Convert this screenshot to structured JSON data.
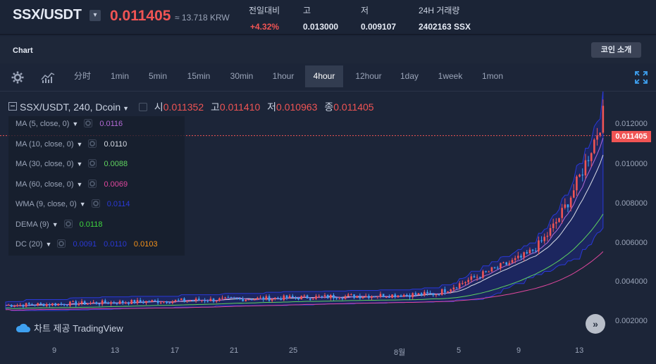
{
  "header": {
    "pair": "SSX/USDT",
    "price": "0.011405",
    "krw": "≈ 13.718 KRW",
    "stats": [
      {
        "label": "전일대비",
        "value": "+4.32%",
        "color": "red"
      },
      {
        "label": "고",
        "value": "0.013000",
        "color": "white"
      },
      {
        "label": "저",
        "value": "0.009107",
        "color": "white"
      },
      {
        "label": "24H 거래량",
        "value": "2402163 SSX",
        "color": "white"
      }
    ]
  },
  "chart_section": {
    "label": "Chart",
    "coin_button": "코인 소개"
  },
  "timeframes": [
    "分时",
    "1min",
    "5min",
    "15min",
    "30min",
    "1hour",
    "4hour",
    "12hour",
    "1day",
    "1week",
    "1mon"
  ],
  "active_timeframe": "4hour",
  "ohlc": {
    "title": "SSX/USDT, 240, Dcoin",
    "o_label": "시",
    "o": "0.011352",
    "h_label": "고",
    "h": "0.011410",
    "l_label": "저",
    "l": "0.010963",
    "c_label": "종",
    "c": "0.011405"
  },
  "indicators": [
    {
      "name": "MA (5, close, 0)",
      "values": [
        "0.0116"
      ],
      "colors": [
        "#b36bd6"
      ]
    },
    {
      "name": "MA (10, close, 0)",
      "values": [
        "0.0110"
      ],
      "colors": [
        "#d9dde6"
      ]
    },
    {
      "name": "MA (30, close, 0)",
      "values": [
        "0.0088"
      ],
      "colors": [
        "#5fd35f"
      ]
    },
    {
      "name": "MA (60, close, 0)",
      "values": [
        "0.0069"
      ],
      "colors": [
        "#e0479e"
      ]
    },
    {
      "name": "WMA (9, close, 0)",
      "values": [
        "0.0114"
      ],
      "colors": [
        "#2a39d6"
      ]
    },
    {
      "name": "DEMA (9)",
      "values": [
        "0.0118"
      ],
      "colors": [
        "#3fd63f"
      ]
    },
    {
      "name": "DC (20)",
      "values": [
        "0.0091",
        "0.0110",
        "0.0103"
      ],
      "colors": [
        "#2a39d6",
        "#2a39d6",
        "#f7931a"
      ]
    }
  ],
  "y_axis": [
    "0.012000",
    "0.010000",
    "0.008000",
    "0.006000",
    "0.004000",
    "0.002000"
  ],
  "x_axis": [
    "9",
    "13",
    "17",
    "21",
    "25",
    "8월",
    "5",
    "9",
    "13"
  ],
  "price_tag": "0.011405",
  "watermark": "차트 제공 TradingView",
  "colors": {
    "up": "#f05454",
    "down": "#3ea0f0",
    "bg": "#1c2538"
  }
}
